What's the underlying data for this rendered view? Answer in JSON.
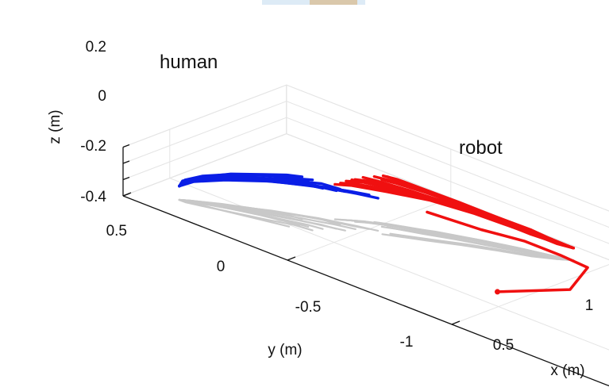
{
  "chart_data": {
    "type": "line",
    "projection": "3d",
    "xlabel": "x (m)",
    "ylabel": "y (m)",
    "zlabel": "z (m)",
    "xticks": [
      "0.5",
      "1"
    ],
    "yticks": [
      "0.5",
      "0",
      "-0.5",
      "-1"
    ],
    "zticks": [
      "0.2",
      "0",
      "-0.2",
      "-0.4"
    ],
    "xlim": [
      0.3,
      1.0
    ],
    "ylim": [
      -1.0,
      0.5
    ],
    "zlim": [
      -0.4,
      0.2
    ],
    "grid": true,
    "annotations": [
      "human",
      "robot"
    ],
    "colors": {
      "human": "#0a1ee6",
      "robot": "#f01010",
      "projection": "#c8c8c8"
    },
    "series": [
      {
        "name": "human",
        "trajectories": [
          [
            [
              0.4,
              0.4,
              -0.23
            ],
            [
              0.4,
              0.38,
              -0.15
            ],
            [
              0.42,
              0.33,
              -0.06
            ],
            [
              0.45,
              0.26,
              0.02
            ],
            [
              0.48,
              0.19,
              0.1
            ],
            [
              0.51,
              0.13,
              0.17
            ],
            [
              0.52,
              0.08,
              0.22
            ]
          ],
          [
            [
              0.4,
              0.4,
              -0.23
            ],
            [
              0.41,
              0.38,
              -0.15
            ],
            [
              0.44,
              0.33,
              -0.06
            ],
            [
              0.47,
              0.27,
              0.01
            ],
            [
              0.5,
              0.2,
              0.07
            ],
            [
              0.52,
              0.14,
              0.12
            ],
            [
              0.53,
              0.1,
              0.16
            ]
          ],
          [
            [
              0.4,
              0.4,
              -0.23
            ],
            [
              0.41,
              0.38,
              -0.15
            ],
            [
              0.44,
              0.33,
              -0.07
            ],
            [
              0.48,
              0.26,
              0.0
            ],
            [
              0.51,
              0.18,
              0.05
            ],
            [
              0.54,
              0.11,
              0.09
            ],
            [
              0.55,
              0.07,
              0.1
            ]
          ],
          [
            [
              0.4,
              0.4,
              -0.23
            ],
            [
              0.41,
              0.38,
              -0.15
            ],
            [
              0.45,
              0.33,
              -0.07
            ],
            [
              0.49,
              0.25,
              -0.01
            ],
            [
              0.53,
              0.17,
              0.03
            ],
            [
              0.57,
              0.09,
              0.06
            ],
            [
              0.58,
              0.05,
              0.07
            ]
          ],
          [
            [
              0.4,
              0.4,
              -0.23
            ],
            [
              0.42,
              0.38,
              -0.15
            ],
            [
              0.46,
              0.32,
              -0.08
            ],
            [
              0.51,
              0.24,
              -0.02
            ],
            [
              0.56,
              0.15,
              0.02
            ],
            [
              0.6,
              0.07,
              0.04
            ],
            [
              0.62,
              0.02,
              0.05
            ]
          ],
          [
            [
              0.4,
              0.4,
              -0.23
            ],
            [
              0.42,
              0.38,
              -0.15
            ],
            [
              0.47,
              0.32,
              -0.08
            ],
            [
              0.53,
              0.23,
              -0.03
            ],
            [
              0.59,
              0.13,
              0.0
            ],
            [
              0.63,
              0.04,
              0.02
            ],
            [
              0.65,
              0.0,
              0.02
            ]
          ],
          [
            [
              0.4,
              0.4,
              -0.23
            ],
            [
              0.41,
              0.39,
              -0.15
            ],
            [
              0.43,
              0.35,
              -0.06
            ],
            [
              0.46,
              0.29,
              0.02
            ],
            [
              0.49,
              0.22,
              0.09
            ],
            [
              0.51,
              0.16,
              0.14
            ],
            [
              0.52,
              0.12,
              0.17
            ]
          ],
          [
            [
              0.4,
              0.4,
              -0.23
            ],
            [
              0.41,
              0.38,
              -0.15
            ],
            [
              0.45,
              0.32,
              -0.07
            ],
            [
              0.5,
              0.24,
              0.0
            ],
            [
              0.54,
              0.16,
              0.04
            ],
            [
              0.57,
              0.08,
              0.07
            ],
            [
              0.59,
              0.03,
              0.08
            ]
          ],
          [
            [
              0.4,
              0.4,
              -0.23
            ],
            [
              0.42,
              0.37,
              -0.15
            ],
            [
              0.47,
              0.31,
              -0.09
            ],
            [
              0.54,
              0.22,
              -0.04
            ],
            [
              0.6,
              0.12,
              -0.01
            ],
            [
              0.64,
              0.03,
              0.0
            ],
            [
              0.66,
              -0.02,
              0.0
            ]
          ],
          [
            [
              0.4,
              0.4,
              -0.23
            ],
            [
              0.41,
              0.39,
              -0.16
            ],
            [
              0.44,
              0.35,
              -0.08
            ],
            [
              0.48,
              0.3,
              -0.01
            ],
            [
              0.52,
              0.23,
              0.05
            ],
            [
              0.55,
              0.18,
              0.09
            ],
            [
              0.56,
              0.14,
              0.12
            ]
          ],
          [
            [
              0.4,
              0.4,
              -0.23
            ],
            [
              0.42,
              0.38,
              -0.16
            ],
            [
              0.46,
              0.33,
              -0.09
            ],
            [
              0.51,
              0.26,
              -0.03
            ],
            [
              0.56,
              0.18,
              0.01
            ],
            [
              0.6,
              0.11,
              0.04
            ],
            [
              0.61,
              0.06,
              0.04
            ]
          ],
          [
            [
              0.4,
              0.4,
              -0.23
            ],
            [
              0.4,
              0.39,
              -0.15
            ],
            [
              0.42,
              0.34,
              -0.05
            ],
            [
              0.44,
              0.28,
              0.04
            ],
            [
              0.46,
              0.22,
              0.12
            ],
            [
              0.48,
              0.16,
              0.19
            ],
            [
              0.49,
              0.13,
              0.23
            ]
          ]
        ]
      },
      {
        "name": "robot",
        "trajectories": [
          [
            [
              0.7,
              -0.02,
              0.22
            ],
            [
              0.71,
              -0.04,
              0.2
            ],
            [
              0.74,
              -0.1,
              0.14
            ],
            [
              0.78,
              -0.17,
              0.07
            ],
            [
              0.82,
              -0.25,
              -0.02
            ],
            [
              0.86,
              -0.33,
              -0.12
            ],
            [
              0.89,
              -0.39,
              -0.2
            ],
            [
              0.92,
              -0.43,
              -0.25
            ]
          ],
          [
            [
              0.65,
              -0.04,
              0.22
            ],
            [
              0.67,
              -0.07,
              0.18
            ],
            [
              0.71,
              -0.13,
              0.12
            ],
            [
              0.76,
              -0.2,
              0.05
            ],
            [
              0.81,
              -0.28,
              -0.04
            ],
            [
              0.85,
              -0.35,
              -0.13
            ],
            [
              0.89,
              -0.4,
              -0.2
            ],
            [
              0.92,
              -0.43,
              -0.25
            ]
          ],
          [
            [
              0.68,
              0.04,
              0.14
            ],
            [
              0.7,
              0.01,
              0.12
            ],
            [
              0.74,
              -0.06,
              0.07
            ],
            [
              0.78,
              -0.14,
              0.01
            ],
            [
              0.83,
              -0.23,
              -0.07
            ],
            [
              0.87,
              -0.32,
              -0.15
            ],
            [
              0.9,
              -0.39,
              -0.21
            ],
            [
              0.92,
              -0.43,
              -0.25
            ]
          ],
          [
            [
              0.66,
              0.06,
              0.1
            ],
            [
              0.68,
              0.03,
              0.09
            ],
            [
              0.73,
              -0.04,
              0.05
            ],
            [
              0.78,
              -0.12,
              -0.01
            ],
            [
              0.83,
              -0.21,
              -0.08
            ],
            [
              0.87,
              -0.3,
              -0.15
            ],
            [
              0.9,
              -0.38,
              -0.21
            ],
            [
              0.92,
              -0.43,
              -0.25
            ]
          ],
          [
            [
              0.69,
              -0.01,
              0.18
            ],
            [
              0.71,
              -0.04,
              0.16
            ],
            [
              0.75,
              -0.1,
              0.1
            ],
            [
              0.79,
              -0.18,
              0.03
            ],
            [
              0.83,
              -0.26,
              -0.05
            ],
            [
              0.87,
              -0.34,
              -0.14
            ],
            [
              0.9,
              -0.4,
              -0.21
            ],
            [
              0.92,
              -0.43,
              -0.25
            ]
          ],
          [
            [
              0.64,
              0.08,
              0.05
            ],
            [
              0.67,
              0.05,
              0.05
            ],
            [
              0.72,
              -0.02,
              0.03
            ],
            [
              0.78,
              -0.11,
              -0.01
            ],
            [
              0.83,
              -0.21,
              -0.07
            ],
            [
              0.87,
              -0.3,
              -0.14
            ],
            [
              0.9,
              -0.38,
              -0.2
            ],
            [
              0.92,
              -0.43,
              -0.25
            ]
          ],
          [
            [
              0.7,
              0.02,
              0.16
            ],
            [
              0.72,
              -0.01,
              0.14
            ],
            [
              0.76,
              -0.08,
              0.09
            ],
            [
              0.8,
              -0.16,
              0.02
            ],
            [
              0.84,
              -0.25,
              -0.06
            ],
            [
              0.88,
              -0.33,
              -0.14
            ],
            [
              0.9,
              -0.4,
              -0.21
            ],
            [
              0.92,
              -0.43,
              -0.25
            ]
          ],
          [
            [
              0.67,
              -0.05,
              0.2
            ],
            [
              0.69,
              -0.08,
              0.17
            ],
            [
              0.73,
              -0.14,
              0.11
            ],
            [
              0.78,
              -0.21,
              0.04
            ],
            [
              0.82,
              -0.28,
              -0.05
            ],
            [
              0.86,
              -0.35,
              -0.14
            ],
            [
              0.89,
              -0.4,
              -0.21
            ],
            [
              0.92,
              -0.43,
              -0.25
            ]
          ],
          [
            [
              0.65,
              0.07,
              0.08
            ],
            [
              0.68,
              0.04,
              0.08
            ],
            [
              0.73,
              -0.03,
              0.05
            ],
            [
              0.78,
              -0.12,
              0.0
            ],
            [
              0.83,
              -0.22,
              -0.07
            ],
            [
              0.87,
              -0.31,
              -0.15
            ],
            [
              0.9,
              -0.38,
              -0.21
            ],
            [
              0.92,
              -0.43,
              -0.25
            ]
          ],
          [
            [
              0.71,
              0.0,
              0.19
            ],
            [
              0.73,
              -0.03,
              0.17
            ],
            [
              0.76,
              -0.09,
              0.11
            ],
            [
              0.8,
              -0.17,
              0.03
            ],
            [
              0.84,
              -0.26,
              -0.06
            ],
            [
              0.88,
              -0.34,
              -0.15
            ],
            [
              0.9,
              -0.4,
              -0.21
            ],
            [
              0.92,
              -0.43,
              -0.25
            ]
          ],
          [
            [
              0.66,
              0.05,
              0.12
            ],
            [
              0.69,
              0.02,
              0.11
            ],
            [
              0.73,
              -0.05,
              0.07
            ],
            [
              0.78,
              -0.13,
              0.01
            ],
            [
              0.83,
              -0.22,
              -0.07
            ],
            [
              0.87,
              -0.31,
              -0.15
            ],
            [
              0.9,
              -0.39,
              -0.21
            ],
            [
              0.92,
              -0.43,
              -0.25
            ]
          ],
          [
            [
              0.63,
              0.09,
              0.03
            ],
            [
              0.66,
              0.06,
              0.03
            ],
            [
              0.71,
              -0.01,
              0.01
            ],
            [
              0.77,
              -0.1,
              -0.02
            ],
            [
              0.82,
              -0.2,
              -0.08
            ],
            [
              0.86,
              -0.3,
              -0.15
            ],
            [
              0.9,
              -0.38,
              -0.21
            ],
            [
              0.92,
              -0.43,
              -0.25
            ]
          ]
        ]
      }
    ],
    "floor_path": [
      [
        0.87,
        -0.02,
        -0.4
      ],
      [
        0.89,
        -0.17,
        -0.4
      ],
      [
        0.92,
        -0.28,
        -0.4
      ],
      [
        0.92,
        -0.39,
        -0.4
      ],
      [
        0.91,
        -0.48,
        -0.4
      ],
      [
        0.75,
        -0.54,
        -0.4
      ],
      [
        0.58,
        -0.44,
        -0.4
      ]
    ],
    "floor_path_color": "#f01010"
  }
}
